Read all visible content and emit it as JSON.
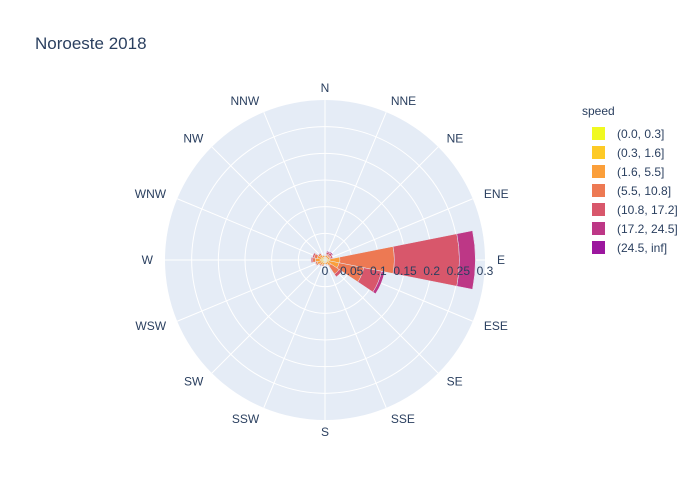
{
  "chart_data": {
    "type": "barpolar",
    "title": "Noroeste 2018",
    "legend_title": "speed",
    "legend_position": "top-right",
    "directions": [
      "N",
      "NNE",
      "NE",
      "ENE",
      "E",
      "ESE",
      "SE",
      "SSE",
      "S",
      "SSW",
      "SW",
      "WSW",
      "W",
      "WNW",
      "NW",
      "NNW"
    ],
    "radial_ticks": [
      "0",
      "0.05",
      "0.1",
      "0.15",
      "0.2",
      "0.25",
      "0.3"
    ],
    "radial_range": [
      0,
      0.3
    ],
    "grid": true,
    "series": [
      {
        "name": "(0.0, 0.3]",
        "color": "#f0f921",
        "values": [
          0.002,
          0.002,
          0.002,
          0.002,
          0.003,
          0.003,
          0.002,
          0.002,
          0.002,
          0.002,
          0.002,
          0.002,
          0.002,
          0.002,
          0.002,
          0.002
        ]
      },
      {
        "name": "(0.3, 1.6]",
        "color": "#fdca26",
        "values": [
          0.003,
          0.003,
          0.003,
          0.003,
          0.005,
          0.004,
          0.003,
          0.003,
          0.003,
          0.004,
          0.004,
          0.005,
          0.006,
          0.005,
          0.004,
          0.003
        ]
      },
      {
        "name": "(1.6, 5.5]",
        "color": "#fb9f3a",
        "values": [
          0.003,
          0.004,
          0.004,
          0.004,
          0.02,
          0.02,
          0.008,
          0.004,
          0.003,
          0.004,
          0.005,
          0.008,
          0.01,
          0.008,
          0.006,
          0.004
        ]
      },
      {
        "name": "(5.5, 10.8]",
        "color": "#ed7953",
        "values": [
          0.001,
          0.002,
          0.003,
          0.003,
          0.102,
          0.047,
          0.019,
          0.001,
          0.001,
          0.002,
          0.002,
          0.003,
          0.005,
          0.006,
          0.003,
          0.001
        ]
      },
      {
        "name": "(10.8, 17.2]",
        "color": "#d8576b",
        "values": [
          0.001,
          0.004,
          0.004,
          0.003,
          0.122,
          0.034,
          0.006,
          0.001,
          0.0,
          0.0,
          0.001,
          0.001,
          0.003,
          0.003,
          0.001,
          0.0
        ]
      },
      {
        "name": "(17.2, 24.5]",
        "color": "#bd3786",
        "values": [
          0.0,
          0.002,
          0.002,
          0.0,
          0.03,
          0.006,
          0.0,
          0.0,
          0.0,
          0.0,
          0.0,
          0.0,
          0.0,
          0.0,
          0.0,
          0.0
        ]
      },
      {
        "name": "(24.5, inf]",
        "color": "#9c179e",
        "values": [
          0,
          0,
          0,
          0,
          0,
          0,
          0,
          0,
          0,
          0,
          0,
          0,
          0,
          0,
          0,
          0
        ]
      }
    ]
  }
}
